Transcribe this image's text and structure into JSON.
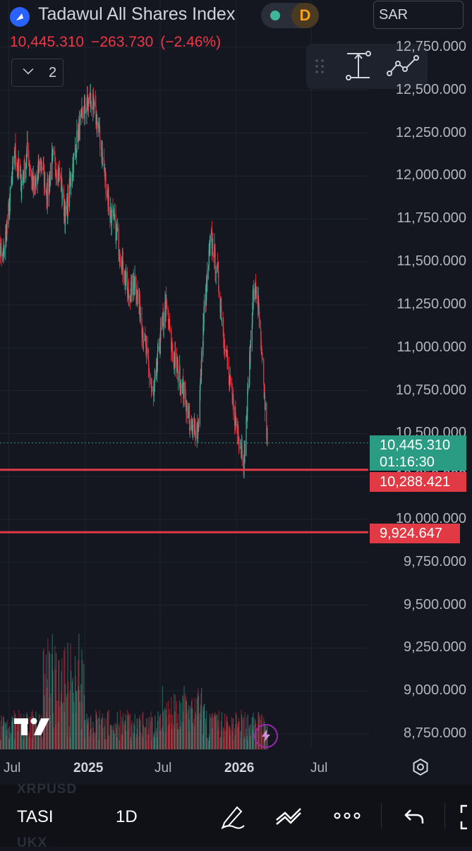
{
  "header": {
    "title": "Tadawul All Shares Index",
    "interval_badge": "D",
    "currency": "SAR",
    "last_price": "10,445.310",
    "change": "−263.730",
    "change_pct": "(−2.46%)",
    "legend_count": "2"
  },
  "price_axis": {
    "labels": [
      "12,750.000",
      "12,500.000",
      "12,250.000",
      "12,000.000",
      "11,750.000",
      "11,500.000",
      "11,250.000",
      "11,000.000",
      "10,750.000",
      "10,500.000",
      "10,250.000",
      "10,000.000",
      "9,750.000",
      "9,500.000",
      "9,250.000",
      "9,000.000",
      "8,750.000"
    ],
    "current_price_tag": "10,445.310",
    "countdown": "01:16:30",
    "horizontal_lines": [
      "10,288.421",
      "9,924.647"
    ]
  },
  "time_axis": {
    "labels": [
      {
        "text": "Jul",
        "bold": false
      },
      {
        "text": "2025",
        "bold": true
      },
      {
        "text": "Jul",
        "bold": false
      },
      {
        "text": "2026",
        "bold": true
      },
      {
        "text": "Jul",
        "bold": false
      }
    ]
  },
  "bottom_bar": {
    "symbol": "TASI",
    "interval": "1D",
    "ghost_top": "XRPUSD",
    "ghost_bottom": "UKX"
  },
  "colors": {
    "background": "#141720",
    "up": "#3fb59c",
    "down": "#f23645",
    "hline": "#e23a45",
    "tag_green": "#2b9c84",
    "tag_red": "#e23a45"
  },
  "chart_data": {
    "type": "candlestick",
    "symbol": "TASI",
    "interval": "1D",
    "ylim": [
      8700,
      12800
    ],
    "x_range": [
      "2024-06",
      "2026-08"
    ],
    "price_path": [
      [
        "2024-06-01",
        11700
      ],
      [
        "2024-06-15",
        11500
      ],
      [
        "2024-07-01",
        11800
      ],
      [
        "2024-07-15",
        12150
      ],
      [
        "2024-08-01",
        11950
      ],
      [
        "2024-08-15",
        12150
      ],
      [
        "2024-09-01",
        11900
      ],
      [
        "2024-09-15",
        12100
      ],
      [
        "2024-10-01",
        11900
      ],
      [
        "2024-10-15",
        12100
      ],
      [
        "2024-11-01",
        12000
      ],
      [
        "2024-11-15",
        11750
      ],
      [
        "2024-12-01",
        12050
      ],
      [
        "2024-12-15",
        12250
      ],
      [
        "2025-01-01",
        12400
      ],
      [
        "2025-01-15",
        12450
      ],
      [
        "2025-02-01",
        12300
      ],
      [
        "2025-02-15",
        12050
      ],
      [
        "2025-03-01",
        11800
      ],
      [
        "2025-03-15",
        11700
      ],
      [
        "2025-04-01",
        11500
      ],
      [
        "2025-04-15",
        11300
      ],
      [
        "2025-05-01",
        11400
      ],
      [
        "2025-05-15",
        11200
      ],
      [
        "2025-06-01",
        10900
      ],
      [
        "2025-06-15",
        10700
      ],
      [
        "2025-07-01",
        11050
      ],
      [
        "2025-07-15",
        11250
      ],
      [
        "2025-08-01",
        10950
      ],
      [
        "2025-08-15",
        10850
      ],
      [
        "2025-09-01",
        10700
      ],
      [
        "2025-09-15",
        10500
      ],
      [
        "2025-10-01",
        10550
      ],
      [
        "2025-10-15",
        11200
      ],
      [
        "2025-11-01",
        11650
      ],
      [
        "2025-11-15",
        11450
      ],
      [
        "2025-12-01",
        11100
      ],
      [
        "2025-12-15",
        10800
      ],
      [
        "2026-01-01",
        10550
      ],
      [
        "2026-01-10",
        10450
      ],
      [
        "2026-01-20",
        10350
      ],
      [
        "2026-02-01",
        10850
      ],
      [
        "2026-02-10",
        11300
      ],
      [
        "2026-02-20",
        11350
      ],
      [
        "2026-03-01",
        11000
      ],
      [
        "2026-03-10",
        10700
      ],
      [
        "2026-03-17",
        10445.31
      ]
    ],
    "last_close": 10445.31,
    "horizontal_levels": [
      10288.421,
      9924.647
    ],
    "grid": true,
    "volume_pane": true
  }
}
